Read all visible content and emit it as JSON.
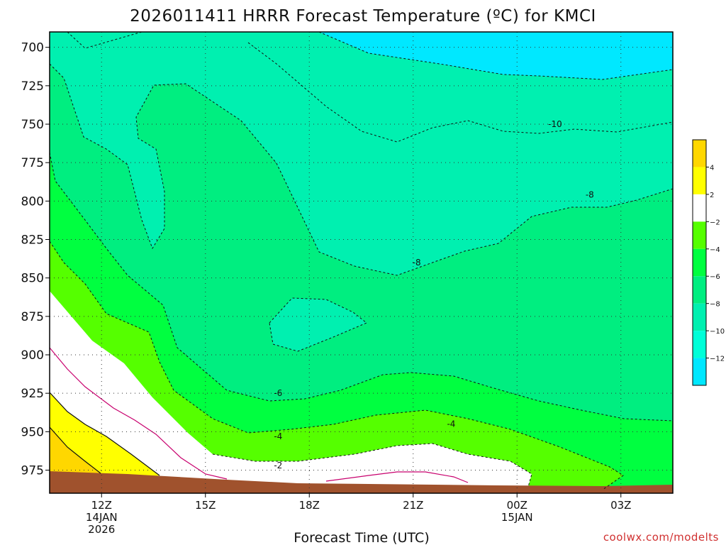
{
  "chart_data": {
    "type": "heatmap",
    "title": "2026011411 HRRR Forecast Temperature (ºC) for KMCI",
    "xlabel": "Forecast Time (UTC)",
    "ylabel": "",
    "credit": "coolwx.com/modelts",
    "y_axis": {
      "unit": "hPa",
      "range": [
        690,
        990
      ],
      "inverted": true,
      "ticks": [
        700,
        725,
        750,
        775,
        800,
        825,
        850,
        875,
        900,
        925,
        950,
        975
      ]
    },
    "x_axis": {
      "range_hours_utc": [
        10.5,
        28.5
      ],
      "ticks": [
        {
          "hour": 12,
          "lines": [
            "12Z",
            "14JAN",
            "2026"
          ]
        },
        {
          "hour": 15,
          "lines": [
            "15Z"
          ]
        },
        {
          "hour": 18,
          "lines": [
            "18Z"
          ]
        },
        {
          "hour": 21,
          "lines": [
            "21Z"
          ]
        },
        {
          "hour": 24,
          "lines": [
            "00Z",
            "15JAN"
          ]
        },
        {
          "hour": 27,
          "lines": [
            "03Z"
          ]
        }
      ]
    },
    "grid": true,
    "color_scale": {
      "labels": [
        "4",
        "2",
        "−2",
        "−4",
        "−6",
        "−8",
        "−10",
        "−12"
      ],
      "bins": [
        {
          "range": "above 4",
          "color": "#ffd700"
        },
        {
          "range": "2 to 4",
          "color": "#ffff00"
        },
        {
          "range": "-2 to 2",
          "color": "#ffffff"
        },
        {
          "range": "-4 to -2",
          "color": "#55ff00"
        },
        {
          "range": "-6 to -4",
          "color": "#00ff40"
        },
        {
          "range": "-8 to -6",
          "color": "#00ee80"
        },
        {
          "range": "-10 to -8",
          "color": "#00f0b0"
        },
        {
          "range": "-12 to -10",
          "color": "#00ffd8"
        },
        {
          "range": "below -12",
          "color": "#00e8ff"
        }
      ]
    },
    "contour_labels": [
      {
        "text": "-10",
        "hour": 25.1,
        "level": 750
      },
      {
        "text": "-8",
        "hour": 26.1,
        "level": 796
      },
      {
        "text": "-8",
        "hour": 21.1,
        "level": 840
      },
      {
        "text": "-6",
        "hour": 17.1,
        "level": 925
      },
      {
        "text": "-4",
        "hour": 22.1,
        "level": 945
      },
      {
        "text": "-4",
        "hour": 17.1,
        "level": 953
      },
      {
        "text": "-2",
        "hour": 17.1,
        "level": 972
      }
    ],
    "ground_color": "#a0522d"
  }
}
